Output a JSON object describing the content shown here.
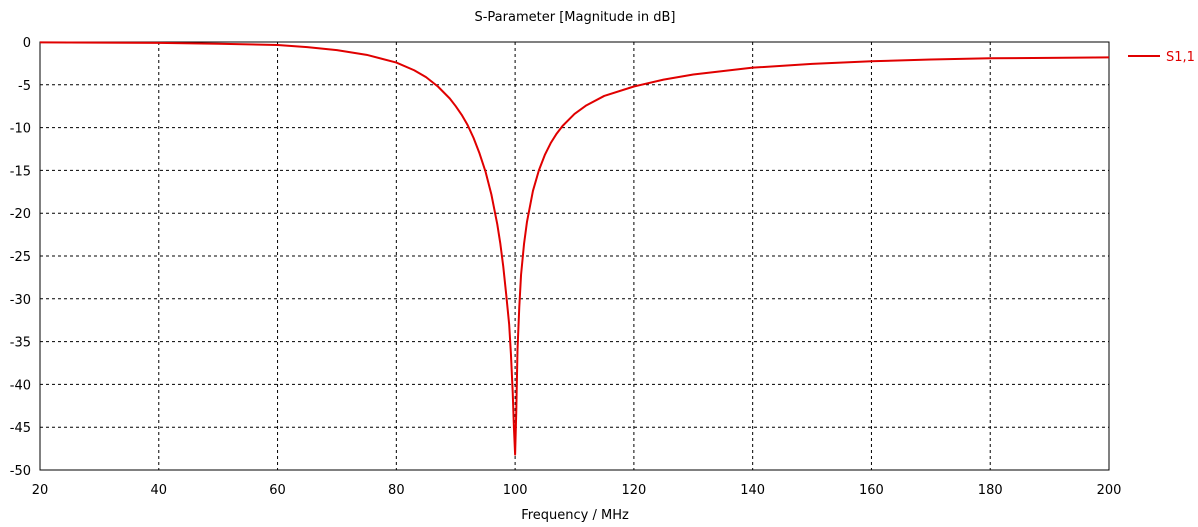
{
  "chart_data": {
    "type": "line",
    "title": "S-Parameter [Magnitude in dB]",
    "xlabel": "Frequency / MHz",
    "ylabel": "",
    "xlim": [
      20,
      200
    ],
    "ylim": [
      -50,
      0
    ],
    "x_ticks": [
      "20",
      "40",
      "60",
      "80",
      "100",
      "120",
      "140",
      "160",
      "180",
      "200"
    ],
    "y_ticks": [
      "0",
      "-5",
      "-10",
      "-15",
      "-20",
      "-25",
      "-30",
      "-35",
      "-40",
      "-45",
      "-50"
    ],
    "grid": true,
    "legend_position": "right",
    "series": [
      {
        "name": "S1,1",
        "color": "#e00000",
        "x": [
          20,
          40,
          50,
          60,
          65,
          70,
          75,
          80,
          83,
          85,
          87,
          89,
          90,
          91,
          92,
          93,
          94,
          95,
          96,
          97,
          97.5,
          98,
          98.5,
          99,
          99.3,
          99.6,
          99.8,
          100,
          100.2,
          100.4,
          100.7,
          101,
          101.5,
          102,
          103,
          104,
          105,
          106,
          107,
          108,
          110,
          112,
          115,
          120,
          125,
          130,
          140,
          150,
          160,
          170,
          180,
          190,
          200
        ],
        "y": [
          -0.05,
          -0.1,
          -0.2,
          -0.35,
          -0.6,
          -0.95,
          -1.5,
          -2.4,
          -3.3,
          -4.1,
          -5.2,
          -6.6,
          -7.5,
          -8.5,
          -9.7,
          -11.2,
          -13.0,
          -15.1,
          -17.8,
          -21.3,
          -23.5,
          -26.2,
          -29.5,
          -33.0,
          -36.5,
          -41.0,
          -45.0,
          -48.2,
          -43.0,
          -36.0,
          -31.0,
          -27.2,
          -23.6,
          -21.0,
          -17.4,
          -15.0,
          -13.2,
          -11.8,
          -10.7,
          -9.8,
          -8.4,
          -7.4,
          -6.3,
          -5.2,
          -4.4,
          -3.8,
          -3.0,
          -2.55,
          -2.25,
          -2.05,
          -1.9,
          -1.85,
          -1.8
        ]
      }
    ]
  }
}
